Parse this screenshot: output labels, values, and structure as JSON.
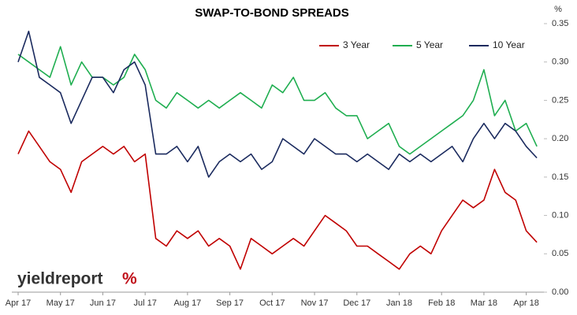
{
  "chart_data": {
    "type": "line",
    "title": "SWAP-TO-BOND SPREADS",
    "y_unit": "%",
    "logo_text": "yieldreport",
    "logo_symbol": "%",
    "categories": [
      "Apr 17",
      null,
      null,
      null,
      "May 17",
      null,
      null,
      null,
      "Jun 17",
      null,
      null,
      null,
      "Jul 17",
      null,
      null,
      null,
      "Aug 17",
      null,
      null,
      null,
      "Sep 17",
      null,
      null,
      null,
      "Oct 17",
      null,
      null,
      null,
      "Nov 17",
      null,
      null,
      null,
      "Dec 17",
      null,
      null,
      null,
      "Jan 18",
      null,
      null,
      null,
      "Feb 18",
      null,
      null,
      null,
      "Mar 18",
      null,
      null,
      null,
      "Apr 18",
      null
    ],
    "series": [
      {
        "name": "3 Year",
        "color": "#c00000",
        "values": [
          0.18,
          0.21,
          0.19,
          0.17,
          0.16,
          0.13,
          0.17,
          0.18,
          0.19,
          0.18,
          0.19,
          0.17,
          0.18,
          0.07,
          0.06,
          0.08,
          0.07,
          0.08,
          0.06,
          0.07,
          0.06,
          0.03,
          0.07,
          0.06,
          0.05,
          0.06,
          0.07,
          0.06,
          0.08,
          0.1,
          0.09,
          0.08,
          0.06,
          0.06,
          0.05,
          0.04,
          0.03,
          0.05,
          0.06,
          0.05,
          0.08,
          0.1,
          0.12,
          0.11,
          0.12,
          0.16,
          0.13,
          0.12,
          0.08,
          0.065
        ]
      },
      {
        "name": "5 Year",
        "color": "#1fae50",
        "values": [
          0.31,
          0.3,
          0.29,
          0.28,
          0.32,
          0.27,
          0.3,
          0.28,
          0.28,
          0.27,
          0.28,
          0.31,
          0.29,
          0.25,
          0.24,
          0.26,
          0.25,
          0.24,
          0.25,
          0.24,
          0.25,
          0.26,
          0.25,
          0.24,
          0.27,
          0.26,
          0.28,
          0.25,
          0.25,
          0.26,
          0.24,
          0.23,
          0.23,
          0.2,
          0.21,
          0.22,
          0.19,
          0.18,
          0.19,
          0.2,
          0.21,
          0.22,
          0.23,
          0.25,
          0.29,
          0.23,
          0.25,
          0.21,
          0.22,
          0.19
        ]
      },
      {
        "name": "10 Year",
        "color": "#1a2a5e",
        "values": [
          0.3,
          0.34,
          0.28,
          0.27,
          0.26,
          0.22,
          0.25,
          0.28,
          0.28,
          0.26,
          0.29,
          0.3,
          0.27,
          0.18,
          0.18,
          0.19,
          0.17,
          0.19,
          0.15,
          0.17,
          0.18,
          0.17,
          0.18,
          0.16,
          0.17,
          0.2,
          0.19,
          0.18,
          0.2,
          0.19,
          0.18,
          0.18,
          0.17,
          0.18,
          0.17,
          0.16,
          0.18,
          0.17,
          0.18,
          0.17,
          0.18,
          0.19,
          0.17,
          0.2,
          0.22,
          0.2,
          0.22,
          0.21,
          0.19,
          0.175
        ]
      }
    ],
    "ylim": [
      0,
      0.35
    ],
    "yticks": [
      {
        "value": 0,
        "label": "0.00"
      },
      0.05,
      {
        "value": 0.1,
        "label": "0.10"
      },
      0.15,
      {
        "value": 0.2,
        "label": "0.20"
      },
      0.25,
      {
        "value": 0.3,
        "label": "0.30"
      },
      0.35
    ],
    "y_axis_side": "right",
    "grid": false,
    "legend": "top"
  }
}
